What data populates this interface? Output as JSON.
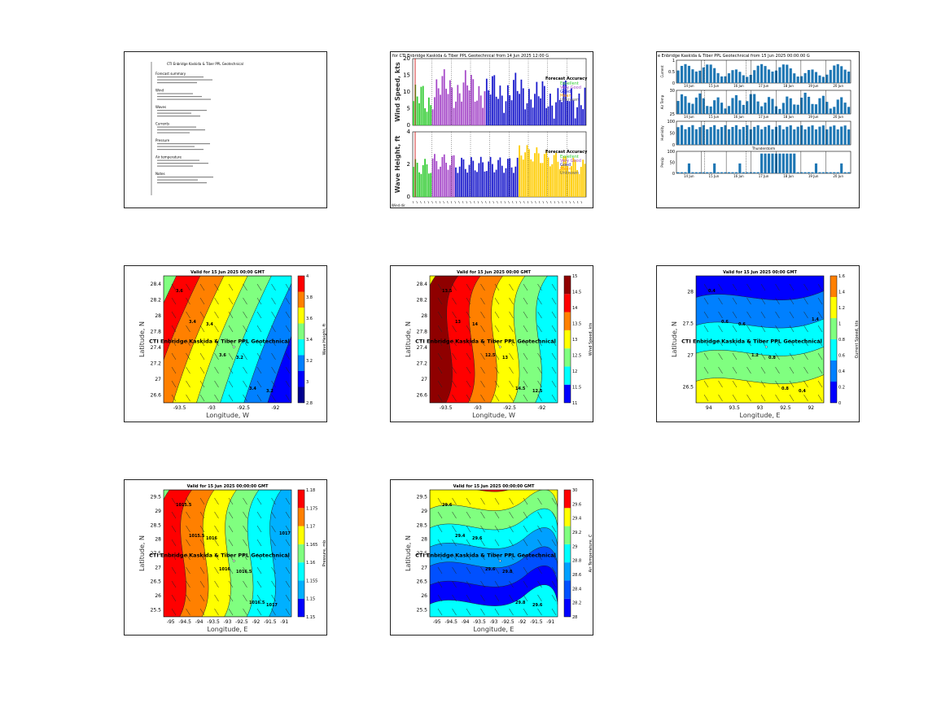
{
  "panels": {
    "p1": {
      "lines": [
        "CTI Enbridge Kaskida & Tiber PPL Geotechnical",
        "Forecast summary",
        "Wind",
        "Waves",
        "Currents",
        "Pressure",
        "Air temperature",
        "Notes"
      ]
    },
    "p2": {
      "title": "for CTI Enbridge Kaskida & Tiber PPL Geotechnical from 14 Jun 2025 12:00 G",
      "wind": {
        "ylabel": "Wind Speed, kts",
        "yticks": [
          "0",
          "5",
          "10",
          "15",
          "20"
        ],
        "legend_title": "Forecast Accuracy",
        "legend": [
          {
            "label": "Excellent",
            "color": "#33cc33"
          },
          {
            "label": "Very Good",
            "color": "#a64ac9"
          },
          {
            "label": "Good",
            "color": "#1a1acc"
          },
          {
            "label": "Mean",
            "color": "#ff9900"
          },
          {
            "label": "Unknown",
            "color": "#666666"
          }
        ]
      },
      "wave": {
        "ylabel": "Wave Height, ft",
        "yticks": [
          "0",
          "2",
          "4"
        ],
        "legend_title": "Forecast Accuracy",
        "legend": [
          {
            "label": "Excellent",
            "color": "#33cc33"
          },
          {
            "label": "Very Good",
            "color": "#a64ac9"
          },
          {
            "label": "Good",
            "color": "#1a1acc"
          },
          {
            "label": "Mean",
            "color": "#ff9900"
          },
          {
            "label": "Unknown",
            "color": "#666666"
          }
        ]
      },
      "footer": "Wind dir"
    },
    "p3": {
      "title": "e Enbridge Kaskida & Tiber PPL Geotechnical from 15 Jun 2025 00:00:00 G",
      "days": [
        "14 Jun",
        "15 Jun",
        "16 Jun",
        "17 Jun",
        "18 Jun",
        "19 Jun",
        "20 Jun"
      ],
      "sub": [
        {
          "ylabel": "Current",
          "yticks": [
            "0",
            "0.5",
            "1"
          ]
        },
        {
          "ylabel": "Air Temp",
          "yticks": [
            "25",
            "30"
          ]
        },
        {
          "ylabel": "Humidity",
          "yticks": [
            "0",
            "50",
            "100"
          ]
        },
        {
          "ylabel": "Precip",
          "yticks": [
            "0",
            "50",
            "100"
          ]
        }
      ],
      "sub_title": "Thunderstorm"
    },
    "maps": [
      {
        "title": "Valid for 15 Jun 2025 00:00 GMT",
        "xlabel": "Longitude, W",
        "ylabel": "Latitude, N",
        "xticks": [
          "-93.5",
          "-93",
          "-92.5",
          "-92"
        ],
        "yticks": [
          "26.6",
          "27",
          "27.2",
          "27.4",
          "27.8",
          "28",
          "28.2",
          "28.4"
        ],
        "cbar_label": "Wave Height, ft",
        "cbar_ticks": [
          "2.8",
          "3",
          "3.2",
          "3.4",
          "3.6",
          "3.8",
          "4"
        ],
        "site": "CTI Enbridge  Kaskida & Tiber PPL Geotechnical",
        "contours": [
          "3.6",
          "3.4",
          "3.2",
          "3.2",
          "3.4",
          "3.6",
          "3.4"
        ],
        "colors": [
          "#00008f",
          "#0000ff",
          "#0080ff",
          "#00ffff",
          "#80ff80",
          "#ffff00",
          "#ff8000",
          "#ff0000"
        ]
      },
      {
        "title": "Valid for 15 Jun 2025 00:00 GMT",
        "xlabel": "Longitude, W",
        "ylabel": "Latitude, N",
        "xticks": [
          "-93.5",
          "-93",
          "-92.5",
          "-92"
        ],
        "yticks": [
          "26.6",
          "27",
          "27.2",
          "27.4",
          "27.8",
          "28",
          "28.2",
          "28.4"
        ],
        "cbar_label": "Wind Speed, kts",
        "cbar_ticks": [
          "11",
          "11.5",
          "12",
          "12.5",
          "13",
          "13.5",
          "14",
          "14.5",
          "15"
        ],
        "site": "CTI Enbridge  Kaskida & Tiber PPL Geotechnical",
        "contours": [
          "13.5",
          "14",
          "13",
          "12.5",
          "13",
          "12.5",
          "14.5"
        ],
        "colors": [
          "#0000ff",
          "#00ffff",
          "#80ff80",
          "#ffff00",
          "#ff8000",
          "#ff0000",
          "#8f0000"
        ]
      },
      {
        "title": "Valid for 15 Jun 2025 00:00 GMT",
        "xlabel": "Longitude, E",
        "ylabel": "Latitude, N",
        "xticks": [
          "94",
          "93.5",
          "93",
          "92.5",
          "92"
        ],
        "yticks": [
          "26.5",
          "27",
          "27.5",
          "28"
        ],
        "cbar_label": "Current Speed, kts",
        "cbar_ticks": [
          "0",
          "0.2",
          "0.4",
          "0.6",
          "0.8",
          "1",
          "1.2",
          "1.4",
          "1.6"
        ],
        "site": "CTI Enbridge  Kaskida & Tiber PPL Geotechnical",
        "contours": [
          "0.4",
          "0.6",
          "0.8",
          "0.4",
          "0.6",
          "1.2",
          "0.8",
          "1.4"
        ],
        "colors": [
          "#0000ff",
          "#0080ff",
          "#00ffff",
          "#80ff80",
          "#ffff00",
          "#ff8000"
        ]
      },
      {
        "title": "Valid for 15 Jun 2025 00:00:00 GMT",
        "xlabel": "Longitude, E",
        "ylabel": "Latitude, N",
        "xticks": [
          "-95",
          "-94.5",
          "-94",
          "-93.5",
          "-93",
          "-92.5",
          "-92",
          "-91.5",
          "-91"
        ],
        "yticks": [
          "25.5",
          "26",
          "26.5",
          "27",
          "27.5",
          "28",
          "28.5",
          "29",
          "29.5"
        ],
        "cbar_label": "Pressure, mb",
        "cbar_ticks": [
          "1.15",
          "1.15",
          "1.155",
          "1.16",
          "1.165",
          "1.17",
          "1.175",
          "1.18"
        ],
        "site": "CTI Enbridge  Kaskida & Tiber PPL Geotechnical",
        "contours": [
          "1015.5",
          "1016",
          "1016.5",
          "1017",
          "1015.5",
          "1016",
          "1016.5",
          "1017"
        ],
        "colors": [
          "#0000ff",
          "#00b0ff",
          "#00ffff",
          "#80ff80",
          "#ffff00",
          "#ff8000",
          "#ff0000"
        ]
      },
      {
        "title": "Valid for 15 Jun 2025 00:00:00 GMT",
        "xlabel": "Longitude, E",
        "ylabel": "Latitude, N",
        "xticks": [
          "-95",
          "-94.5",
          "-94",
          "-93.5",
          "-93",
          "-92.5",
          "-92",
          "-91.5",
          "-91"
        ],
        "yticks": [
          "25.5",
          "26",
          "26.5",
          "27",
          "27.5",
          "28",
          "28.5",
          "29",
          "29.5"
        ],
        "cbar_label": "Air Temperature, C",
        "cbar_ticks": [
          "28",
          "28.2",
          "28.4",
          "28.6",
          "28.8",
          "29",
          "29.2",
          "29.4",
          "29.6",
          "30"
        ],
        "site": "CTI Enbridge  Kaskida & Tiber PPL Geotechnical",
        "contours": [
          "29.6",
          "29.6",
          "29.8",
          "29.6",
          "29.4",
          "29.6",
          "29.8"
        ],
        "colors": [
          "#0000ff",
          "#0050ff",
          "#00a0ff",
          "#00ffff",
          "#80ff80",
          "#ffff00",
          "#ff0000"
        ]
      }
    ]
  },
  "chart_data": [
    {
      "type": "table",
      "title": "",
      "note": "text summary panel"
    },
    {
      "type": "bar",
      "title": "for CTI Enbridge Kaskida & Tiber PPL Geotechnical from 14 Jun 2025 12:00 G",
      "ylabel": "Wind Speed, kts",
      "ylim": [
        0,
        20
      ]
    },
    {
      "type": "bar",
      "title": "e Enbridge Kaskida & Tiber PPL Geotechnical from 15 Jun 2025 00:00:00 G"
    },
    {
      "type": "heatmap",
      "title": "Valid for 15 Jun 2025 00:00 GMT",
      "xlabel": "Longitude, W",
      "ylabel": "Latitude, N"
    },
    {
      "type": "heatmap",
      "title": "Valid for 15 Jun 2025 00:00 GMT",
      "xlabel": "Longitude, W",
      "ylabel": "Latitude, N"
    },
    {
      "type": "heatmap",
      "title": "Valid for 15 Jun 2025 00:00 GMT",
      "xlabel": "Longitude, E",
      "ylabel": "Latitude, N"
    },
    {
      "type": "heatmap",
      "title": "Valid for 15 Jun 2025 00:00:00 GMT",
      "xlabel": "Longitude, E",
      "ylabel": "Latitude, N"
    },
    {
      "type": "heatmap",
      "title": "Valid for 15 Jun 2025 00:00:00 GMT",
      "xlabel": "Longitude, E",
      "ylabel": "Latitude, N"
    }
  ]
}
